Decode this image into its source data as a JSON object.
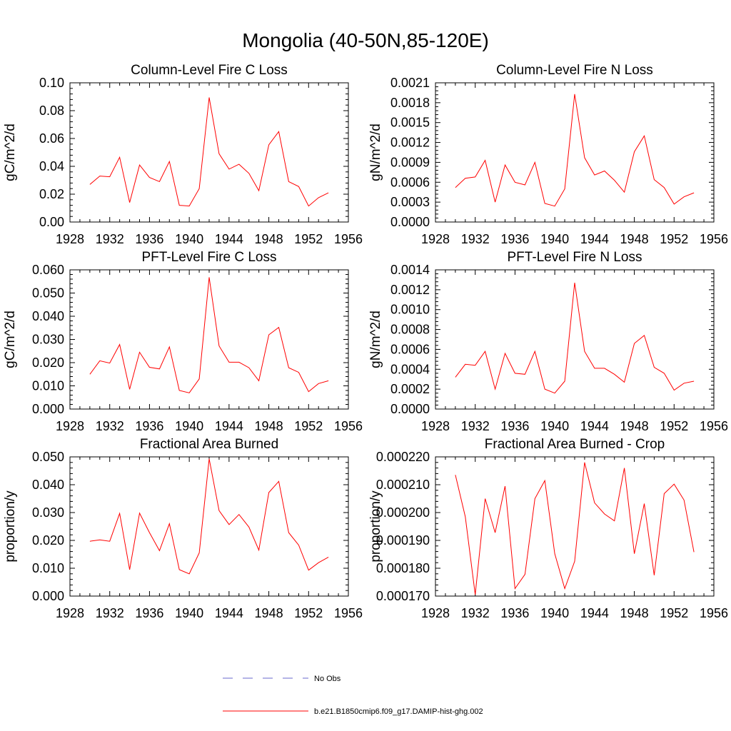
{
  "figure": {
    "title": "Mongolia (40-50N,85-120E)",
    "series_color": "#ff0000",
    "obs_color": "#6a6acd"
  },
  "legend": {
    "obs_label": "No Obs",
    "model_label": "b.e21.B1850cmip6.f09_g17.DAMIP-hist-ghg.002"
  },
  "chart_data": [
    {
      "type": "line",
      "title": "Column-Level Fire C Loss",
      "ylabel": "gC/m^2/d",
      "xlim": [
        1928,
        1956
      ],
      "ylim": [
        0,
        0.1
      ],
      "xticks": [
        1928,
        1932,
        1936,
        1940,
        1944,
        1948,
        1952,
        1956
      ],
      "ytick_labels": [
        "0.00",
        "0.02",
        "0.04",
        "0.06",
        "0.08",
        "0.10"
      ],
      "yticks": [
        0,
        0.02,
        0.04,
        0.06,
        0.08,
        0.1
      ],
      "series": [
        {
          "x": [
            1930,
            1931,
            1932,
            1933,
            1934,
            1935,
            1936,
            1937,
            1938,
            1939,
            1940,
            1941,
            1942,
            1943,
            1944,
            1945,
            1946,
            1947,
            1948,
            1949,
            1950,
            1951,
            1952,
            1953,
            1954
          ],
          "values": [
            0.027,
            0.033,
            0.0325,
            0.0465,
            0.014,
            0.041,
            0.032,
            0.029,
            0.0435,
            0.012,
            0.0115,
            0.024,
            0.0895,
            0.049,
            0.038,
            0.0415,
            0.035,
            0.0225,
            0.0555,
            0.065,
            0.029,
            0.0255,
            0.0115,
            0.0175,
            0.021
          ]
        }
      ]
    },
    {
      "type": "line",
      "title": "Column-Level Fire N Loss",
      "ylabel": "gN/m^2/d",
      "xlim": [
        1928,
        1956
      ],
      "ylim": [
        0,
        0.0021
      ],
      "xticks": [
        1928,
        1932,
        1936,
        1940,
        1944,
        1948,
        1952,
        1956
      ],
      "ytick_labels": [
        "0.0000",
        "0.0003",
        "0.0006",
        "0.0009",
        "0.0012",
        "0.0015",
        "0.0018",
        "0.0021"
      ],
      "yticks": [
        0,
        0.0003,
        0.0006,
        0.0009,
        0.0012,
        0.0015,
        0.0018,
        0.0021
      ],
      "series": [
        {
          "x": [
            1930,
            1931,
            1932,
            1933,
            1934,
            1935,
            1936,
            1937,
            1938,
            1939,
            1940,
            1941,
            1942,
            1943,
            1944,
            1945,
            1946,
            1947,
            1948,
            1949,
            1950,
            1951,
            1952,
            1953,
            1954
          ],
          "values": [
            0.00052,
            0.00066,
            0.00068,
            0.00093,
            0.0003,
            0.00086,
            0.0006,
            0.00056,
            0.0009,
            0.00028,
            0.00024,
            0.0005,
            0.00193,
            0.00097,
            0.00071,
            0.00077,
            0.00063,
            0.00045,
            0.00106,
            0.0013,
            0.00064,
            0.00052,
            0.00027,
            0.00038,
            0.00044
          ]
        }
      ]
    },
    {
      "type": "line",
      "title": "PFT-Level Fire C Loss",
      "ylabel": "gC/m^2/d",
      "xlim": [
        1928,
        1956
      ],
      "ylim": [
        0,
        0.06
      ],
      "xticks": [
        1928,
        1932,
        1936,
        1940,
        1944,
        1948,
        1952,
        1956
      ],
      "ytick_labels": [
        "0.000",
        "0.010",
        "0.020",
        "0.030",
        "0.040",
        "0.050",
        "0.060"
      ],
      "yticks": [
        0,
        0.01,
        0.02,
        0.03,
        0.04,
        0.05,
        0.06
      ],
      "series": [
        {
          "x": [
            1930,
            1931,
            1932,
            1933,
            1934,
            1935,
            1936,
            1937,
            1938,
            1939,
            1940,
            1941,
            1942,
            1943,
            1944,
            1945,
            1946,
            1947,
            1948,
            1949,
            1950,
            1951,
            1952,
            1953,
            1954
          ],
          "values": [
            0.015,
            0.0208,
            0.0198,
            0.0278,
            0.0085,
            0.0245,
            0.018,
            0.0173,
            0.0268,
            0.008,
            0.007,
            0.013,
            0.0568,
            0.0272,
            0.0202,
            0.0202,
            0.0178,
            0.0122,
            0.032,
            0.0352,
            0.0178,
            0.0158,
            0.0075,
            0.011,
            0.0122
          ]
        }
      ]
    },
    {
      "type": "line",
      "title": "PFT-Level Fire N Loss",
      "ylabel": "gN/m^2/d",
      "xlim": [
        1928,
        1956
      ],
      "ylim": [
        0,
        0.0014
      ],
      "xticks": [
        1928,
        1932,
        1936,
        1940,
        1944,
        1948,
        1952,
        1956
      ],
      "ytick_labels": [
        "0.0000",
        "0.0002",
        "0.0004",
        "0.0006",
        "0.0008",
        "0.0010",
        "0.0012",
        "0.0014"
      ],
      "yticks": [
        0,
        0.0002,
        0.0004,
        0.0006,
        0.0008,
        0.001,
        0.0012,
        0.0014
      ],
      "series": [
        {
          "x": [
            1930,
            1931,
            1932,
            1933,
            1934,
            1935,
            1936,
            1937,
            1938,
            1939,
            1940,
            1941,
            1942,
            1943,
            1944,
            1945,
            1946,
            1947,
            1948,
            1949,
            1950,
            1951,
            1952,
            1953,
            1954
          ],
          "values": [
            0.00032,
            0.00045,
            0.00044,
            0.00058,
            0.0002,
            0.00056,
            0.00036,
            0.00035,
            0.00058,
            0.0002,
            0.00016,
            0.00028,
            0.00127,
            0.00058,
            0.00041,
            0.00041,
            0.00035,
            0.00027,
            0.00066,
            0.00074,
            0.00042,
            0.00036,
            0.00019,
            0.00026,
            0.00028
          ]
        }
      ]
    },
    {
      "type": "line",
      "title": "Fractional Area Burned",
      "ylabel": "proportion/y",
      "xlim": [
        1928,
        1956
      ],
      "ylim": [
        0,
        0.05
      ],
      "xticks": [
        1928,
        1932,
        1936,
        1940,
        1944,
        1948,
        1952,
        1956
      ],
      "ytick_labels": [
        "0.000",
        "0.010",
        "0.020",
        "0.030",
        "0.040",
        "0.050"
      ],
      "yticks": [
        0,
        0.01,
        0.02,
        0.03,
        0.04,
        0.05
      ],
      "series": [
        {
          "x": [
            1930,
            1931,
            1932,
            1933,
            1934,
            1935,
            1936,
            1937,
            1938,
            1939,
            1940,
            1941,
            1942,
            1943,
            1944,
            1945,
            1946,
            1947,
            1948,
            1949,
            1950,
            1951,
            1952,
            1953,
            1954
          ],
          "values": [
            0.0197,
            0.0202,
            0.0197,
            0.0297,
            0.0095,
            0.0298,
            0.0228,
            0.0163,
            0.026,
            0.0095,
            0.008,
            0.0155,
            0.0493,
            0.0307,
            0.0257,
            0.0293,
            0.0248,
            0.0165,
            0.0372,
            0.0412,
            0.0228,
            0.0183,
            0.0093,
            0.012,
            0.014
          ]
        }
      ]
    },
    {
      "type": "line",
      "title": "Fractional Area Burned - Crop",
      "ylabel": "proportion/y",
      "xlim": [
        1928,
        1956
      ],
      "ylim": [
        0.00017,
        0.00022
      ],
      "xticks": [
        1928,
        1932,
        1936,
        1940,
        1944,
        1948,
        1952,
        1956
      ],
      "ytick_labels": [
        "0.000170",
        "0.000180",
        "0.000190",
        "0.000200",
        "0.000210",
        "0.000220"
      ],
      "yticks": [
        0.00017,
        0.00018,
        0.00019,
        0.0002,
        0.00021,
        0.00022
      ],
      "series": [
        {
          "x": [
            1930,
            1931,
            1932,
            1933,
            1934,
            1935,
            1936,
            1937,
            1938,
            1939,
            1940,
            1941,
            1942,
            1943,
            1944,
            1945,
            1946,
            1947,
            1948,
            1949,
            1950,
            1951,
            1952,
            1953,
            1954
          ],
          "values": [
            0.0002135,
            0.0001985,
            0.0001705,
            0.000205,
            0.0001928,
            0.0002095,
            0.0001727,
            0.0001778,
            0.000205,
            0.0002115,
            0.0001852,
            0.0001727,
            0.0001825,
            0.000218,
            0.0002035,
            0.0001995,
            0.000197,
            0.000216,
            0.0001852,
            0.0002032,
            0.0001775,
            0.0002068,
            0.0002102,
            0.0002045,
            0.0001858
          ]
        }
      ]
    }
  ]
}
